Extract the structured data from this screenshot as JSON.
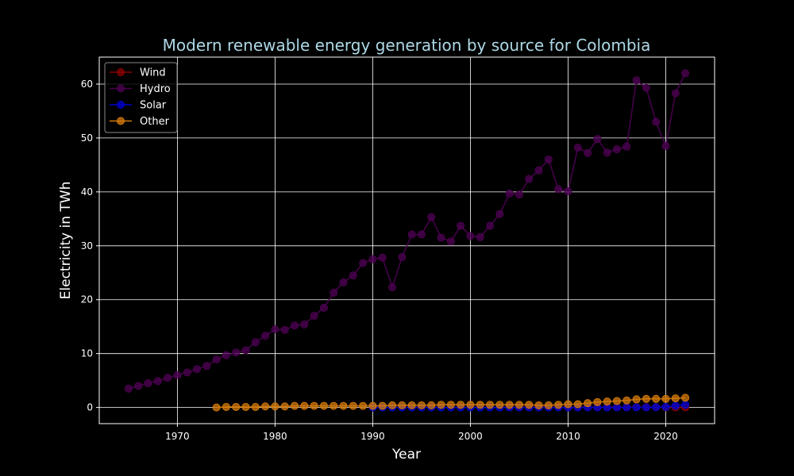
{
  "chart_data": {
    "type": "line",
    "title": "Modern renewable energy generation by source for Colombia",
    "xlabel": "Year",
    "ylabel": "Electricity in TWh",
    "xlim": [
      1962,
      2025
    ],
    "ylim": [
      -3,
      65
    ],
    "xticks": [
      1970,
      1980,
      1990,
      2000,
      2010,
      2020
    ],
    "yticks": [
      0,
      10,
      20,
      30,
      40,
      50,
      60
    ],
    "grid": true,
    "legend_position": "top-left",
    "series": [
      {
        "name": "Wind",
        "color": "#8b0000",
        "x": [
          2004,
          2005,
          2006,
          2007,
          2008,
          2009,
          2010,
          2011,
          2012,
          2013,
          2014,
          2015,
          2016,
          2017,
          2018,
          2019,
          2020,
          2021,
          2022
        ],
        "y": [
          0.05,
          0.05,
          0.05,
          0.05,
          0.05,
          0.05,
          0.05,
          0.05,
          0.05,
          0.05,
          0.05,
          0.05,
          0.05,
          0.05,
          0.05,
          0.05,
          0.01,
          0.02,
          0.03
        ]
      },
      {
        "name": "Hydro",
        "color": "#4b0050",
        "x": [
          1965,
          1966,
          1967,
          1968,
          1969,
          1970,
          1971,
          1972,
          1973,
          1974,
          1975,
          1976,
          1977,
          1978,
          1979,
          1980,
          1981,
          1982,
          1983,
          1984,
          1985,
          1986,
          1987,
          1988,
          1989,
          1990,
          1991,
          1992,
          1993,
          1994,
          1995,
          1996,
          1997,
          1998,
          1999,
          2000,
          2001,
          2002,
          2003,
          2004,
          2005,
          2006,
          2007,
          2008,
          2009,
          2010,
          2011,
          2012,
          2013,
          2014,
          2015,
          2016,
          2017,
          2018,
          2019,
          2020,
          2021,
          2022
        ],
        "y": [
          3.5,
          4.0,
          4.5,
          4.9,
          5.5,
          6.0,
          6.5,
          7.1,
          7.7,
          8.9,
          9.7,
          10.2,
          10.6,
          12.1,
          13.3,
          14.5,
          14.4,
          15.2,
          15.4,
          17.0,
          18.5,
          21.3,
          23.2,
          24.5,
          26.8,
          27.5,
          27.8,
          22.3,
          27.9,
          32.1,
          32.1,
          35.3,
          31.5,
          30.8,
          33.7,
          31.8,
          31.6,
          33.7,
          35.9,
          39.7,
          39.5,
          42.4,
          44.0,
          46.0,
          40.5,
          40.1,
          48.2,
          47.2,
          49.8,
          47.3,
          47.9,
          48.4,
          60.7,
          59.3,
          53.0,
          48.5,
          58.3,
          62.0
        ]
      },
      {
        "name": "Solar",
        "color": "#0000cd",
        "x": [
          1990,
          1991,
          1992,
          1993,
          1994,
          1995,
          1996,
          1997,
          1998,
          1999,
          2000,
          2001,
          2002,
          2003,
          2004,
          2005,
          2006,
          2007,
          2008,
          2009,
          2010,
          2011,
          2012,
          2013,
          2014,
          2015,
          2016,
          2017,
          2018,
          2019,
          2020,
          2021,
          2022
        ],
        "y": [
          0.0,
          0.0,
          0.0,
          0.0,
          0.0,
          0.0,
          0.0,
          0.0,
          0.0,
          0.0,
          0.0,
          0.0,
          0.0,
          0.0,
          0.0,
          0.0,
          0.0,
          0.0,
          0.0,
          0.0,
          0.0,
          0.0,
          0.0,
          0.0,
          0.0,
          0.0,
          0.01,
          0.02,
          0.02,
          0.05,
          0.1,
          0.3,
          0.5
        ]
      },
      {
        "name": "Other",
        "color": "#d2780a",
        "x": [
          1974,
          1975,
          1976,
          1977,
          1978,
          1979,
          1980,
          1981,
          1982,
          1983,
          1984,
          1985,
          1986,
          1987,
          1988,
          1989,
          1990,
          1991,
          1992,
          1993,
          1994,
          1995,
          1996,
          1997,
          1998,
          1999,
          2000,
          2001,
          2002,
          2003,
          2004,
          2005,
          2006,
          2007,
          2008,
          2009,
          2010,
          2011,
          2012,
          2013,
          2014,
          2015,
          2016,
          2017,
          2018,
          2019,
          2020,
          2021,
          2022
        ],
        "y": [
          0.0,
          0.1,
          0.1,
          0.1,
          0.1,
          0.2,
          0.2,
          0.2,
          0.3,
          0.3,
          0.3,
          0.3,
          0.3,
          0.3,
          0.3,
          0.3,
          0.3,
          0.3,
          0.4,
          0.4,
          0.4,
          0.4,
          0.4,
          0.5,
          0.5,
          0.5,
          0.5,
          0.5,
          0.5,
          0.5,
          0.5,
          0.5,
          0.5,
          0.4,
          0.4,
          0.5,
          0.6,
          0.6,
          0.8,
          1.0,
          1.1,
          1.2,
          1.3,
          1.5,
          1.6,
          1.6,
          1.6,
          1.7,
          1.8
        ]
      }
    ]
  }
}
